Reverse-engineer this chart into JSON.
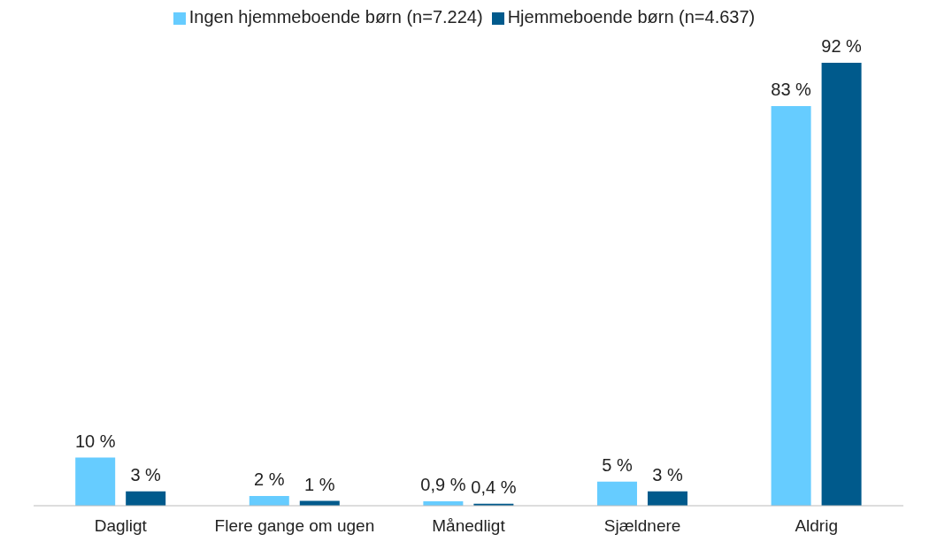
{
  "chart_data": {
    "type": "bar",
    "categories": [
      "Dagligt",
      "Flere gange om ugen",
      "Månedligt",
      "Sjældnere",
      "Aldrig"
    ],
    "series": [
      {
        "name": "Ingen hjemmeboende børn (n=7.224)",
        "color": "#66ccff",
        "values": [
          10,
          2,
          0.9,
          5,
          83
        ],
        "value_labels": [
          "10 %",
          "2 %",
          "0,9 %",
          "5 %",
          "83 %"
        ]
      },
      {
        "name": "Hjemmeboende børn (n=4.637)",
        "color": "#005a8c",
        "values": [
          3,
          1,
          0.4,
          3,
          92
        ],
        "value_labels": [
          "3 %",
          "1 %",
          "0,4 %",
          "3 %",
          "92 %"
        ]
      }
    ],
    "legend": "top"
  }
}
